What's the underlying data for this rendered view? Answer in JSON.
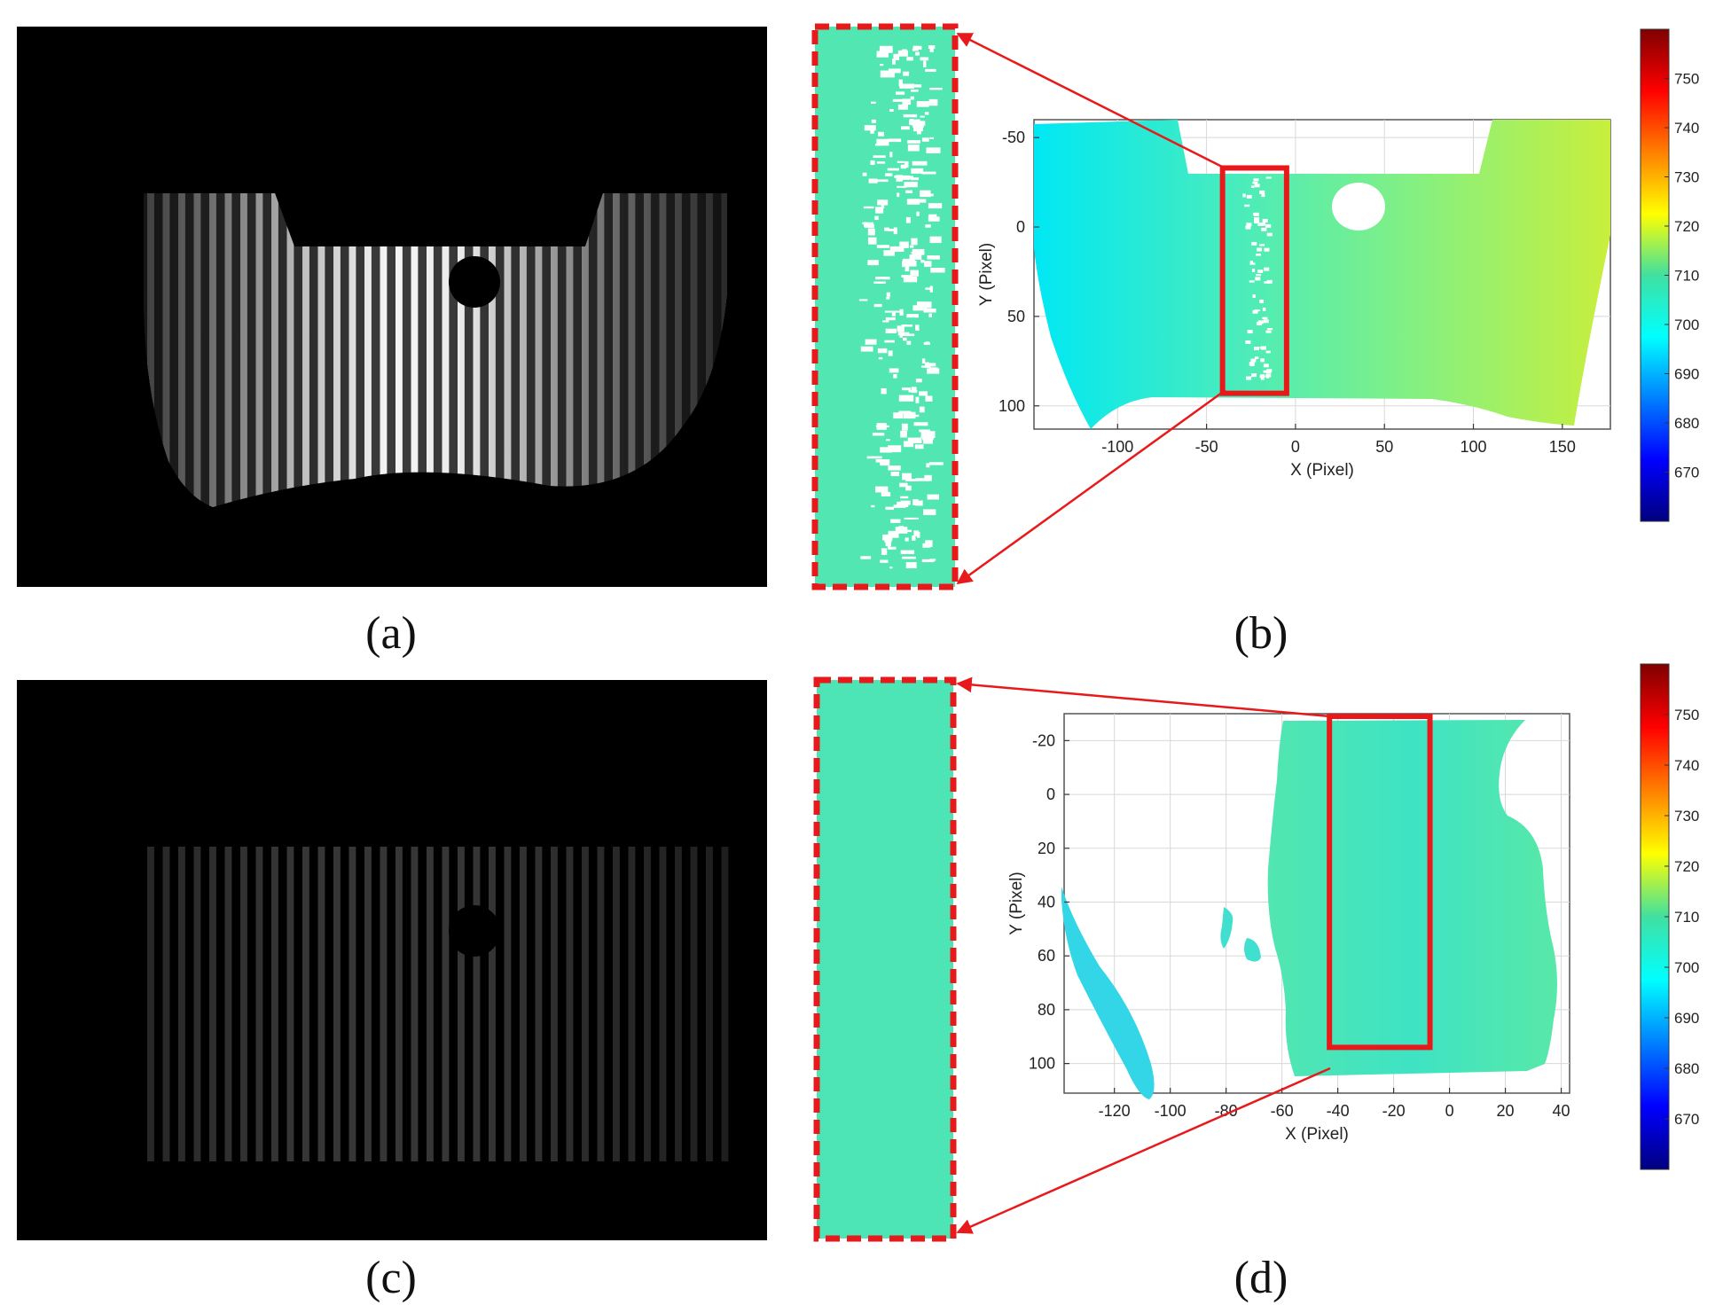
{
  "labels": {
    "a": "(a)",
    "b": "(b)",
    "c": "(c)",
    "d": "(d)"
  },
  "colors": {
    "zoom_border": "#e8191b",
    "arrow": "#e8191b",
    "cyan_surface": "#2fe8cf",
    "mint_surface": "#48e6b4",
    "gradient_stops": [
      "#00e8f4",
      "#49ecbc",
      "#8cf07a",
      "#c8ef3c"
    ]
  },
  "fringe_panels": {
    "a": {
      "pattern": "vertical-fringes",
      "brightness": "high"
    },
    "c": {
      "pattern": "vertical-fringes",
      "brightness": "low"
    }
  },
  "chart_data": [
    {
      "type": "heatmap",
      "panel": "b",
      "xlabel": "X (Pixel)",
      "ylabel": "Y (Pixel)",
      "xlim": [
        -147,
        177
      ],
      "ylim": [
        -60,
        113
      ],
      "y_inverted": true,
      "xticks": [
        -100,
        -50,
        0,
        50,
        100,
        150
      ],
      "yticks": [
        -50,
        0,
        50,
        100
      ],
      "grid": true,
      "highlight_box": {
        "x": [
          -41,
          -5
        ],
        "y": [
          -33,
          93
        ]
      },
      "colorbar": {
        "ticks": [
          670,
          680,
          690,
          700,
          710,
          720,
          730,
          740,
          750
        ],
        "range": [
          660,
          760
        ],
        "colormap": "jet"
      },
      "surface_value_range": [
        695,
        720
      ]
    },
    {
      "type": "heatmap",
      "panel": "d",
      "xlabel": "X (Pixel)",
      "ylabel": "Y (Pixel)",
      "xlim": [
        -138,
        43
      ],
      "ylim": [
        -30,
        111
      ],
      "y_inverted": true,
      "xticks": [
        -120,
        -100,
        -80,
        -60,
        -40,
        -20,
        0,
        20,
        40
      ],
      "yticks": [
        -20,
        0,
        20,
        40,
        60,
        80,
        100
      ],
      "grid": true,
      "highlight_box": {
        "x": [
          -43,
          -7
        ],
        "y": [
          -29,
          94
        ]
      },
      "colorbar": {
        "ticks": [
          670,
          680,
          690,
          700,
          710,
          720,
          730,
          740,
          750
        ],
        "range": [
          660,
          760
        ],
        "colormap": "jet"
      },
      "surface_value_range": [
        698,
        705
      ]
    }
  ]
}
